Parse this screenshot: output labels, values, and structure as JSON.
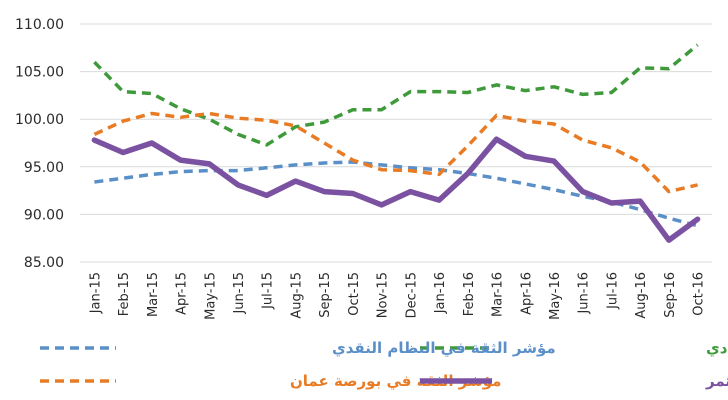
{
  "chart_data": {
    "type": "line",
    "title": "",
    "xlabel": "",
    "ylabel": "",
    "ylim": [
      85,
      110
    ],
    "y_ticks": [
      "85.00",
      "90.00",
      "95.00",
      "100.00",
      "105.00",
      "110.00"
    ],
    "y_tick_values": [
      85,
      90,
      95,
      100,
      105,
      110
    ],
    "grid": "horizontal",
    "legend_position": "bottom",
    "categories": [
      "Jan-15",
      "Feb-15",
      "Mar-15",
      "Apr-15",
      "May-15",
      "Jun-15",
      "Jul-15",
      "Aug-15",
      "Sep-15",
      "Oct-15",
      "Nov-15",
      "Dec-15",
      "Jan-16",
      "Feb-16",
      "Mar-16",
      "Apr-16",
      "May-16",
      "Jun-16",
      "Jul-16",
      "Aug-16",
      "Sep-16",
      "Oct-16"
    ],
    "series": [
      {
        "name": "مؤشر الثقة في النشاط الاقتصادي",
        "color": "#3e9a3a",
        "style": "dashed",
        "values": [
          106.0,
          102.9,
          102.7,
          101.1,
          100.0,
          98.4,
          97.3,
          99.2,
          99.7,
          101.0,
          101.0,
          102.9,
          102.9,
          102.8,
          103.6,
          103.0,
          103.4,
          102.6,
          102.8,
          105.4,
          105.3,
          107.8
        ]
      },
      {
        "name": "مؤشر الثقة في النظام النقدي",
        "color": "#5b8fc7",
        "style": "dashed",
        "values": [
          93.4,
          93.8,
          94.2,
          94.5,
          94.6,
          94.6,
          94.9,
          95.2,
          95.4,
          95.5,
          95.2,
          94.9,
          94.7,
          94.3,
          93.8,
          93.2,
          92.6,
          91.9,
          91.3,
          90.5,
          89.6,
          88.8
        ]
      },
      {
        "name": "مؤشر الثقة في بورصة عمان",
        "color": "#e87b24",
        "style": "dashed",
        "values": [
          98.4,
          99.8,
          100.6,
          100.2,
          100.6,
          100.1,
          99.9,
          99.3,
          97.5,
          95.7,
          94.7,
          94.6,
          94.2,
          97.2,
          100.4,
          99.8,
          99.5,
          97.8,
          97.0,
          95.5,
          92.4,
          93.1
        ]
      },
      {
        "name": "المؤشر الأردني لثقة المستثمر",
        "color": "#7b52a1",
        "style": "solid",
        "values": [
          97.8,
          96.5,
          97.5,
          95.7,
          95.3,
          93.1,
          92.0,
          93.5,
          92.4,
          92.2,
          91.0,
          92.4,
          91.5,
          94.3,
          97.9,
          96.1,
          95.6,
          92.4,
          91.2,
          91.4,
          87.3,
          89.5
        ]
      }
    ]
  }
}
